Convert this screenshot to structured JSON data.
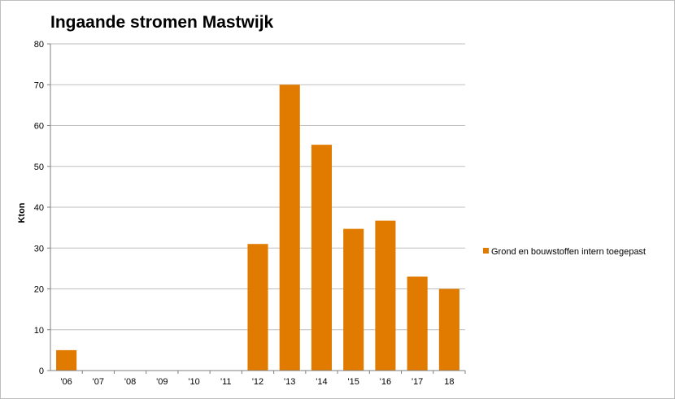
{
  "chart_data": {
    "type": "bar",
    "title": "Ingaande stromen Mastwijk",
    "ylabel": "Kton",
    "xlabel": "",
    "categories": [
      "'06",
      "'07",
      "'08",
      "'09",
      "'10",
      "'11",
      "'12",
      "'13",
      "'14",
      "'15",
      "'16",
      "'17",
      "18"
    ],
    "series": [
      {
        "name": "Grond en bouwstoffen intern toegepast",
        "color": "#e07b00",
        "values": [
          5,
          0,
          0,
          0,
          0,
          0,
          31,
          70,
          55.3,
          34.7,
          36.7,
          23,
          20
        ]
      }
    ],
    "ylim": [
      0,
      80
    ],
    "yticks": [
      0,
      10,
      20,
      30,
      40,
      50,
      60,
      70,
      80
    ],
    "grid": true,
    "legend": "right"
  }
}
